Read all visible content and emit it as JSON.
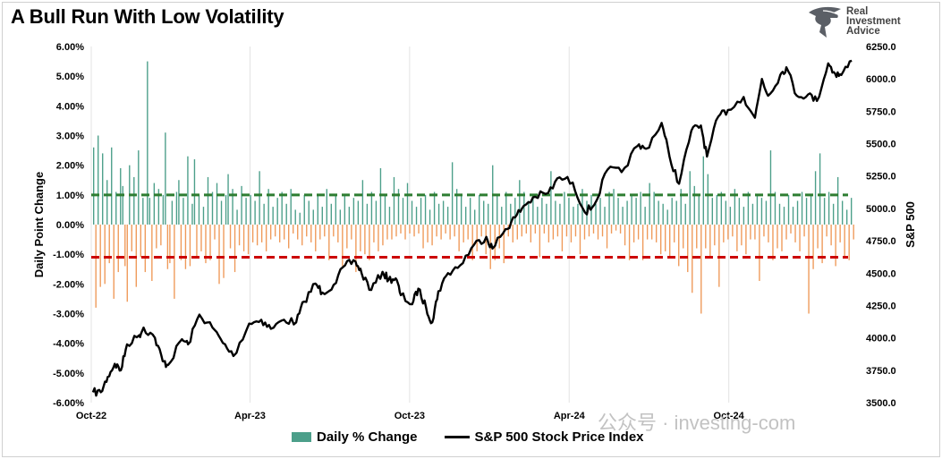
{
  "title": "A Bull Run With Low Volatility",
  "logo": {
    "line1": "Real",
    "line2": "Investment",
    "line3": "Advice"
  },
  "watermark": "公众号 · investing-com",
  "chart_data": {
    "type": "bar+line",
    "title": "A Bull Run With Low Volatility",
    "ylabel": "Daily Point Change",
    "y2label": "S&P 500",
    "ylim": [
      -6,
      6
    ],
    "y2lim": [
      3500,
      6250
    ],
    "yticks": [
      "6.00%",
      "5.00%",
      "4.00%",
      "3.00%",
      "2.00%",
      "1.00%",
      "0.00%",
      "-1.00%",
      "-2.00%",
      "-3.00%",
      "-4.00%",
      "-5.00%",
      "-6.00%"
    ],
    "y2ticks": [
      "6250.0",
      "6000.0",
      "5750.0",
      "5500.0",
      "5250.0",
      "5000.0",
      "4750.0",
      "4500.0",
      "4250.0",
      "4000.0",
      "3750.0",
      "3500.0"
    ],
    "xticks": [
      "Oct-22",
      "Apr-23",
      "Oct-23",
      "Apr-24",
      "Oct-24"
    ],
    "legend": [
      "Daily % Change",
      "S&P 500 Stock Price Index"
    ],
    "legend_position": "bottom",
    "colors": {
      "positive": "#4c9f8a",
      "negative": "#ef9a5a",
      "price": "#000000",
      "upper_line": "#2e7d32",
      "lower_line": "#cc0000"
    },
    "reference_lines": {
      "upper": 1.0,
      "lower": -1.1
    },
    "series": [
      {
        "name": "S&P 500 Stock Price Index",
        "axis": "right",
        "points": [
          [
            "2022-10-03",
            3580
          ],
          [
            "2022-10-12",
            3580
          ],
          [
            "2022-10-20",
            3700
          ],
          [
            "2022-10-28",
            3800
          ],
          [
            "2022-11-04",
            3750
          ],
          [
            "2022-11-11",
            3950
          ],
          [
            "2022-11-25",
            4020
          ],
          [
            "2022-11-30",
            4080
          ],
          [
            "2022-12-13",
            4000
          ],
          [
            "2022-12-22",
            3820
          ],
          [
            "2022-12-28",
            3790
          ],
          [
            "2023-01-13",
            3990
          ],
          [
            "2023-01-20",
            3950
          ],
          [
            "2023-02-02",
            4180
          ],
          [
            "2023-02-17",
            4080
          ],
          [
            "2023-03-01",
            3960
          ],
          [
            "2023-03-13",
            3860
          ],
          [
            "2023-03-31",
            4110
          ],
          [
            "2023-04-14",
            4140
          ],
          [
            "2023-04-25",
            4070
          ],
          [
            "2023-05-10",
            4140
          ],
          [
            "2023-05-24",
            4120
          ],
          [
            "2023-06-02",
            4280
          ],
          [
            "2023-06-15",
            4420
          ],
          [
            "2023-06-23",
            4350
          ],
          [
            "2023-07-06",
            4410
          ],
          [
            "2023-07-19",
            4560
          ],
          [
            "2023-07-31",
            4590
          ],
          [
            "2023-08-07",
            4500
          ],
          [
            "2023-08-18",
            4370
          ],
          [
            "2023-08-31",
            4510
          ],
          [
            "2023-09-07",
            4450
          ],
          [
            "2023-09-15",
            4460
          ],
          [
            "2023-09-21",
            4330
          ],
          [
            "2023-10-04",
            4260
          ],
          [
            "2023-10-11",
            4380
          ],
          [
            "2023-10-20",
            4230
          ],
          [
            "2023-10-27",
            4120
          ],
          [
            "2023-11-03",
            4360
          ],
          [
            "2023-11-14",
            4500
          ],
          [
            "2023-11-28",
            4560
          ],
          [
            "2023-12-14",
            4720
          ],
          [
            "2023-12-28",
            4780
          ],
          [
            "2024-01-04",
            4690
          ],
          [
            "2024-01-19",
            4840
          ],
          [
            "2024-01-30",
            4930
          ],
          [
            "2024-02-09",
            5020
          ],
          [
            "2024-02-22",
            5090
          ],
          [
            "2024-03-08",
            5120
          ],
          [
            "2024-03-21",
            5240
          ],
          [
            "2024-04-05",
            5200
          ],
          [
            "2024-04-19",
            4970
          ],
          [
            "2024-04-30",
            5030
          ],
          [
            "2024-05-15",
            5300
          ],
          [
            "2024-05-31",
            5280
          ],
          [
            "2024-06-18",
            5480
          ],
          [
            "2024-06-28",
            5460
          ],
          [
            "2024-07-16",
            5660
          ],
          [
            "2024-07-25",
            5400
          ],
          [
            "2024-08-05",
            5190
          ],
          [
            "2024-08-19",
            5600
          ],
          [
            "2024-08-30",
            5640
          ],
          [
            "2024-09-06",
            5400
          ],
          [
            "2024-09-19",
            5710
          ],
          [
            "2024-09-30",
            5760
          ],
          [
            "2024-10-18",
            5860
          ],
          [
            "2024-10-31",
            5700
          ],
          [
            "2024-11-08",
            6000
          ],
          [
            "2024-11-15",
            5870
          ],
          [
            "2024-11-29",
            6030
          ],
          [
            "2024-12-06",
            6090
          ],
          [
            "2024-12-18",
            5870
          ],
          [
            "2024-12-31",
            5880
          ],
          [
            "2025-01-10",
            5830
          ],
          [
            "2025-01-23",
            6120
          ],
          [
            "2025-01-31",
            6040
          ],
          [
            "2025-02-07",
            6030
          ],
          [
            "2025-02-19",
            6140
          ]
        ]
      }
    ],
    "daily_change": {
      "name": "Daily % Change",
      "axis": "left",
      "values": [
        2.6,
        -2.8,
        3.0,
        -2.1,
        2.4,
        -2.0,
        1.5,
        -1.3,
        2.6,
        -2.5,
        1.1,
        -1.6,
        1.9,
        1.3,
        -1.4,
        -2.6,
        2.0,
        -0.9,
        1.6,
        -2.1,
        2.5,
        -1.1,
        0.9,
        -1.6,
        5.5,
        0.9,
        -1.9,
        1.4,
        -0.8,
        1.2,
        -0.7,
        1.0,
        3.1,
        -1.5,
        -1.3,
        0.8,
        -2.5,
        1.1,
        1.5,
        -1.2,
        0.9,
        -1.5,
        2.3,
        -1.4,
        0.7,
        2.2,
        -1.1,
        1.0,
        -0.9,
        0.6,
        -1.3,
        1.6,
        -1.2,
        1.1,
        -0.5,
        1.4,
        -2.0,
        0.8,
        -1.8,
        1.0,
        1.7,
        -0.8,
        1.2,
        -1.6,
        0.5,
        -0.7,
        1.3,
        -0.9,
        0.9,
        -1.0,
        1.0,
        -0.6,
        0.8,
        -0.7,
        1.8,
        -0.6,
        0.7,
        -0.9,
        1.2,
        -0.5,
        0.6,
        -0.4,
        0.9,
        -0.6,
        1.1,
        -0.5,
        0.7,
        -0.8,
        1.2,
        -0.3,
        0.5,
        -0.5,
        0.4,
        -0.7,
        1.0,
        -0.4,
        0.8,
        -0.6,
        0.5,
        -0.9,
        1.0,
        -0.5,
        0.6,
        -0.4,
        1.2,
        -1.2,
        0.7,
        -0.4,
        1.0,
        -0.6,
        0.5,
        -1.4,
        1.0,
        -0.8,
        0.6,
        -0.5,
        0.9,
        -1.6,
        0.8,
        -0.9,
        1.5,
        -1.0,
        0.7,
        -1.2,
        1.1,
        -0.6,
        0.8,
        -0.9,
        1.9,
        -0.7,
        1.0,
        -0.5,
        0.6,
        -0.5,
        1.6,
        -0.4,
        1.2,
        -0.3,
        0.9,
        -0.5,
        1.4,
        -0.3,
        0.8,
        -0.4,
        0.6,
        -0.3,
        0.9,
        -0.8,
        1.0,
        -0.6,
        0.5,
        -0.7,
        1.1,
        -0.4,
        0.7,
        -0.5,
        0.8,
        -0.3,
        0.6,
        -0.5,
        2.1,
        -0.4,
        1.2,
        -0.9,
        1.0,
        -0.6,
        0.6,
        -0.5,
        0.9,
        -1.2,
        0.5,
        -0.9,
        1.0,
        -0.4,
        0.8,
        -1.0,
        0.7,
        -1.5,
        2.0,
        -1.2,
        1.0,
        -0.8,
        0.6,
        -1.3,
        1.1,
        -0.4,
        0.7,
        -0.6,
        0.9,
        -0.5,
        1.5,
        -0.4,
        1.1,
        -0.3,
        0.8,
        -0.6,
        1.0,
        -0.3,
        0.6,
        -1.1,
        0.9,
        -0.3,
        0.7,
        -0.6,
        1.8,
        -0.5,
        0.8,
        -0.4,
        0.7,
        -0.9,
        1.1,
        -0.4,
        0.9,
        -0.6,
        0.6,
        -0.4,
        0.7,
        -1.0,
        1.2,
        -0.5,
        0.8,
        -0.4,
        1.0,
        -0.3,
        0.7,
        -0.5,
        0.9,
        -0.4,
        0.6,
        -0.8,
        1.1,
        -0.3,
        1.2,
        -0.2,
        0.9,
        -0.3,
        0.6,
        -0.7,
        0.8,
        -1.2,
        1.0,
        -0.6,
        0.9,
        -0.5,
        1.1,
        -1.2,
        0.6,
        -0.5,
        1.4,
        -0.5,
        1.1,
        -0.6,
        0.8,
        -1.0,
        0.7,
        -0.9,
        0.5,
        -1.1,
        0.9,
        -0.6,
        0.8,
        -1.4,
        1.2,
        -0.8,
        0.7,
        -1.6,
        1.8,
        -2.3,
        1.3,
        -0.8,
        1.0,
        -3.0,
        2.3,
        -0.8,
        1.7,
        -1.1,
        0.9,
        -0.7,
        1.0,
        -2.1,
        1.1,
        -0.6,
        0.8,
        -0.5,
        0.6,
        -0.4,
        1.2,
        -0.9,
        0.9,
        -0.7,
        0.6,
        -1.0,
        1.1,
        -0.5,
        0.7,
        -0.5,
        1.0,
        -1.9,
        0.9,
        -0.4,
        0.8,
        -0.6,
        2.5,
        -1.2,
        1.1,
        -0.8,
        0.7,
        -0.9,
        0.6,
        -0.5,
        1.0,
        -0.3,
        0.6,
        -0.6,
        0.8,
        -0.9,
        1.1,
        -0.4,
        0.9,
        -3.0,
        1.0,
        -1.5,
        1.8,
        -0.8,
        2.4,
        -1.3,
        0.9,
        -0.4,
        1.1,
        -0.7,
        0.7,
        -1.4,
        1.6,
        -0.6,
        0.8,
        -1.1,
        0.5,
        -1.2,
        0.9,
        -0.5
      ]
    }
  }
}
